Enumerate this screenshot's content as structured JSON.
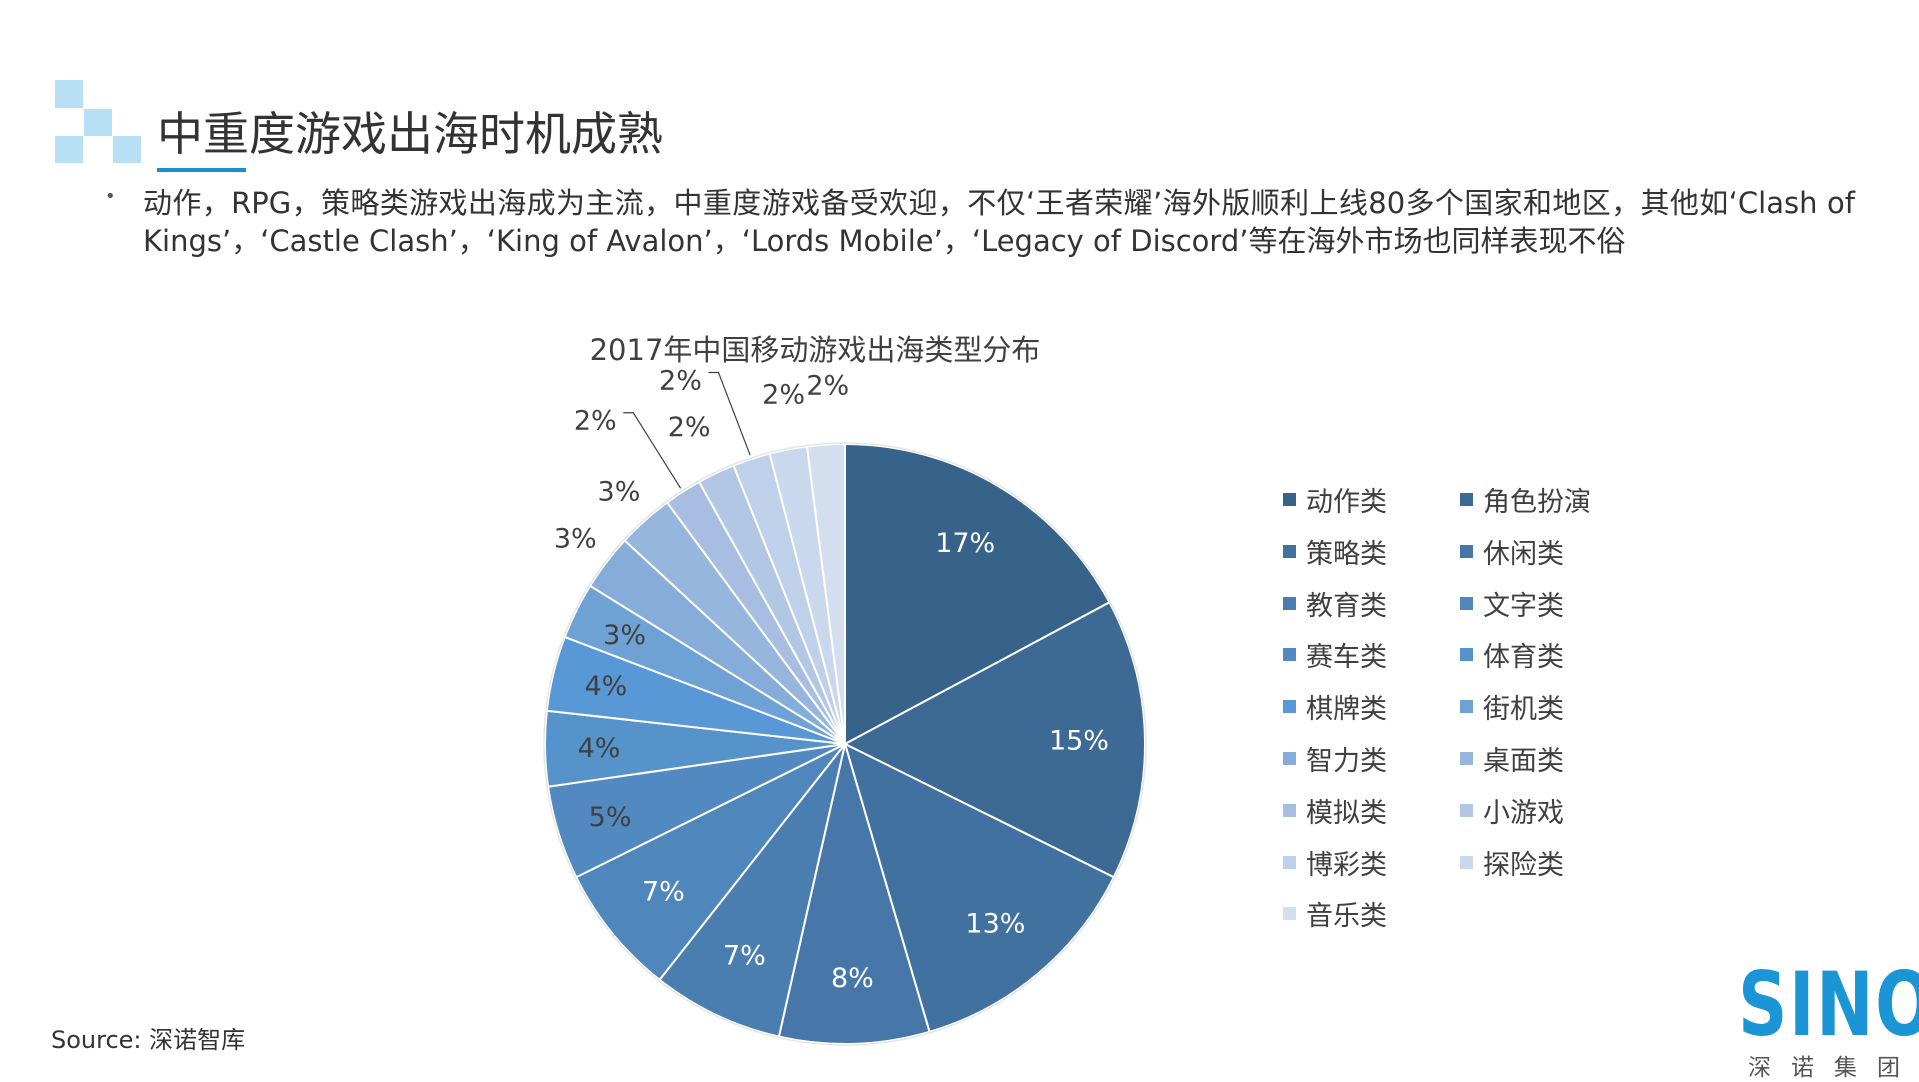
{
  "slide": {
    "title": "中重度游戏出海时机成熟",
    "bullet": "动作，RPG，策略类游戏出海成为主流，中重度游戏备受欢迎，不仅‘王者荣耀’海外版顺利上线80多个国家和地区，其他如‘Clash of Kings’，‘Castle Clash’，‘King of Avalon’，‘Lords Mobile’，‘Legacy of Discord’等在海外市场也同样表现不俗",
    "source": "Source: 深诺智库",
    "logo_text": "SINO",
    "logo_sub": "深诺集团",
    "accent_color": "#1a8fd0"
  },
  "chart_data": {
    "type": "pie",
    "title": "2017年中国移动游戏出海类型分布",
    "legend_position": "right",
    "categories": [
      "动作类",
      "角色扮演",
      "策略类",
      "休闲类",
      "教育类",
      "文字类",
      "赛车类",
      "体育类",
      "棋牌类",
      "街机类",
      "智力类",
      "桌面类",
      "模拟类",
      "小游戏",
      "博彩类",
      "探险类",
      "音乐类"
    ],
    "values": [
      17,
      15,
      13,
      8,
      7,
      7,
      5,
      4,
      4,
      3,
      3,
      3,
      2,
      2,
      2,
      2,
      2
    ],
    "labels": [
      "17%",
      "15%",
      "13%",
      "8%",
      "7%",
      "7%",
      "5%",
      "4%",
      "4%",
      "3%",
      "3%",
      "3%",
      "2%",
      "2%",
      "2%",
      "2%",
      "2%"
    ],
    "colors": [
      "#37628a",
      "#3c6a95",
      "#41729f",
      "#4677a8",
      "#4a7eb0",
      "#4f86bb",
      "#5189c0",
      "#5593ca",
      "#5898d6",
      "#6ea2d5",
      "#86addA",
      "#97b6dd",
      "#a7bee2",
      "#b2c7e4",
      "#bed0ea",
      "#c9d8ec",
      "#d3dfef"
    ]
  }
}
